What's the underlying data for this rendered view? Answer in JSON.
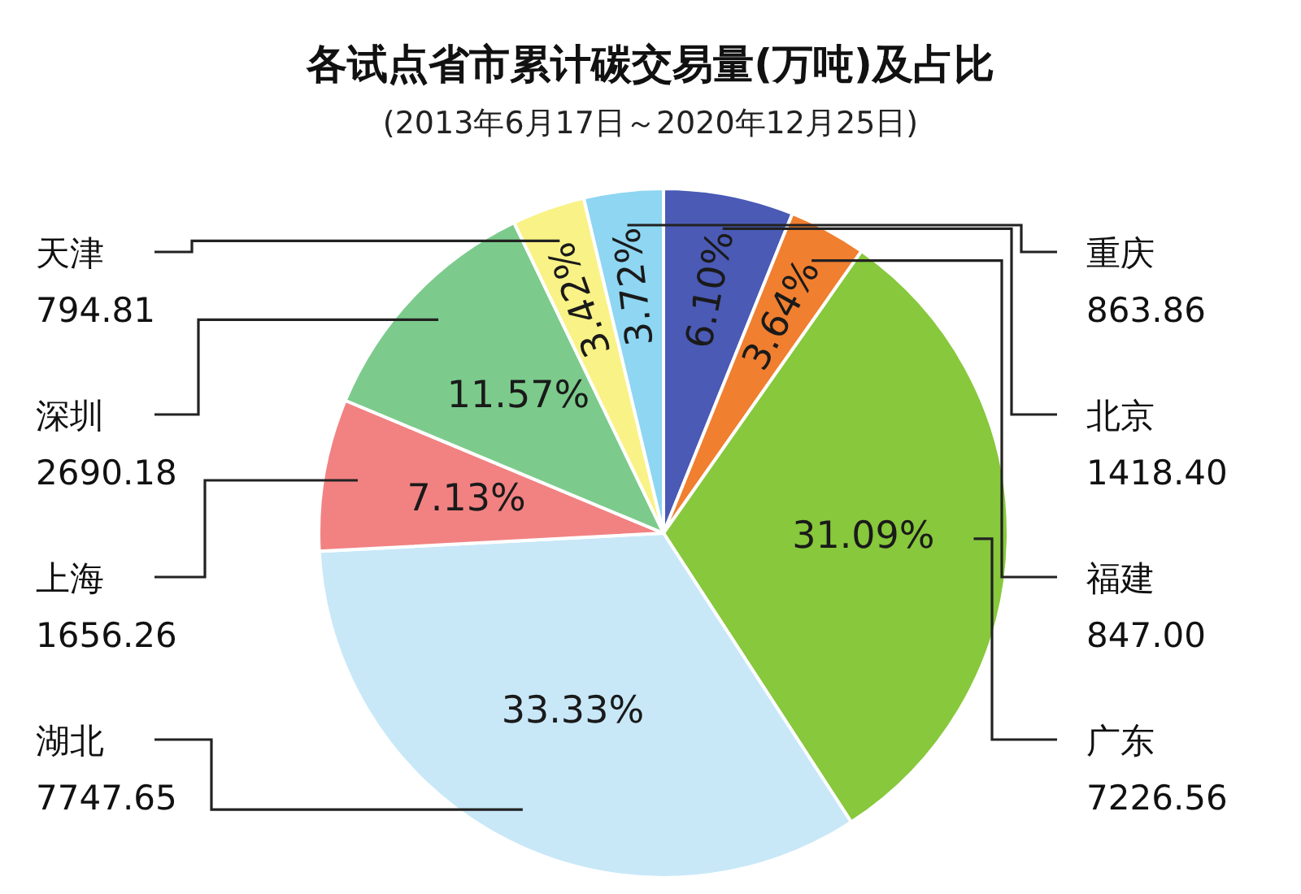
{
  "chart_data": {
    "type": "pie",
    "title": "各试点省市累计碳交易量(万吨)及占比",
    "subtitle": "(2013年6月17日～2020年12月25日)",
    "categories": [
      "北京\n1418.40",
      "福建\n847.00",
      "广东\n7226.56",
      "湖北\n7747.65",
      "上海\n1656.26",
      "深圳\n2690.18",
      "天津\n794.81",
      "重庆\n863.86"
    ],
    "values": [
      6.1,
      3.64,
      31.09,
      33.33,
      7.13,
      11.57,
      3.42,
      3.72
    ],
    "value_labels": [
      "6.10%",
      "3.64%",
      "31.09%",
      "33.33%",
      "7.13%",
      "11.57%",
      "3.42%",
      "3.72%"
    ],
    "colors": [
      "#4a5ab5",
      "#f07f30",
      "#87c83c",
      "#c8e8f8",
      "#f28282",
      "#7ccb8c",
      "#f9f286",
      "#8ed6f2"
    ]
  }
}
